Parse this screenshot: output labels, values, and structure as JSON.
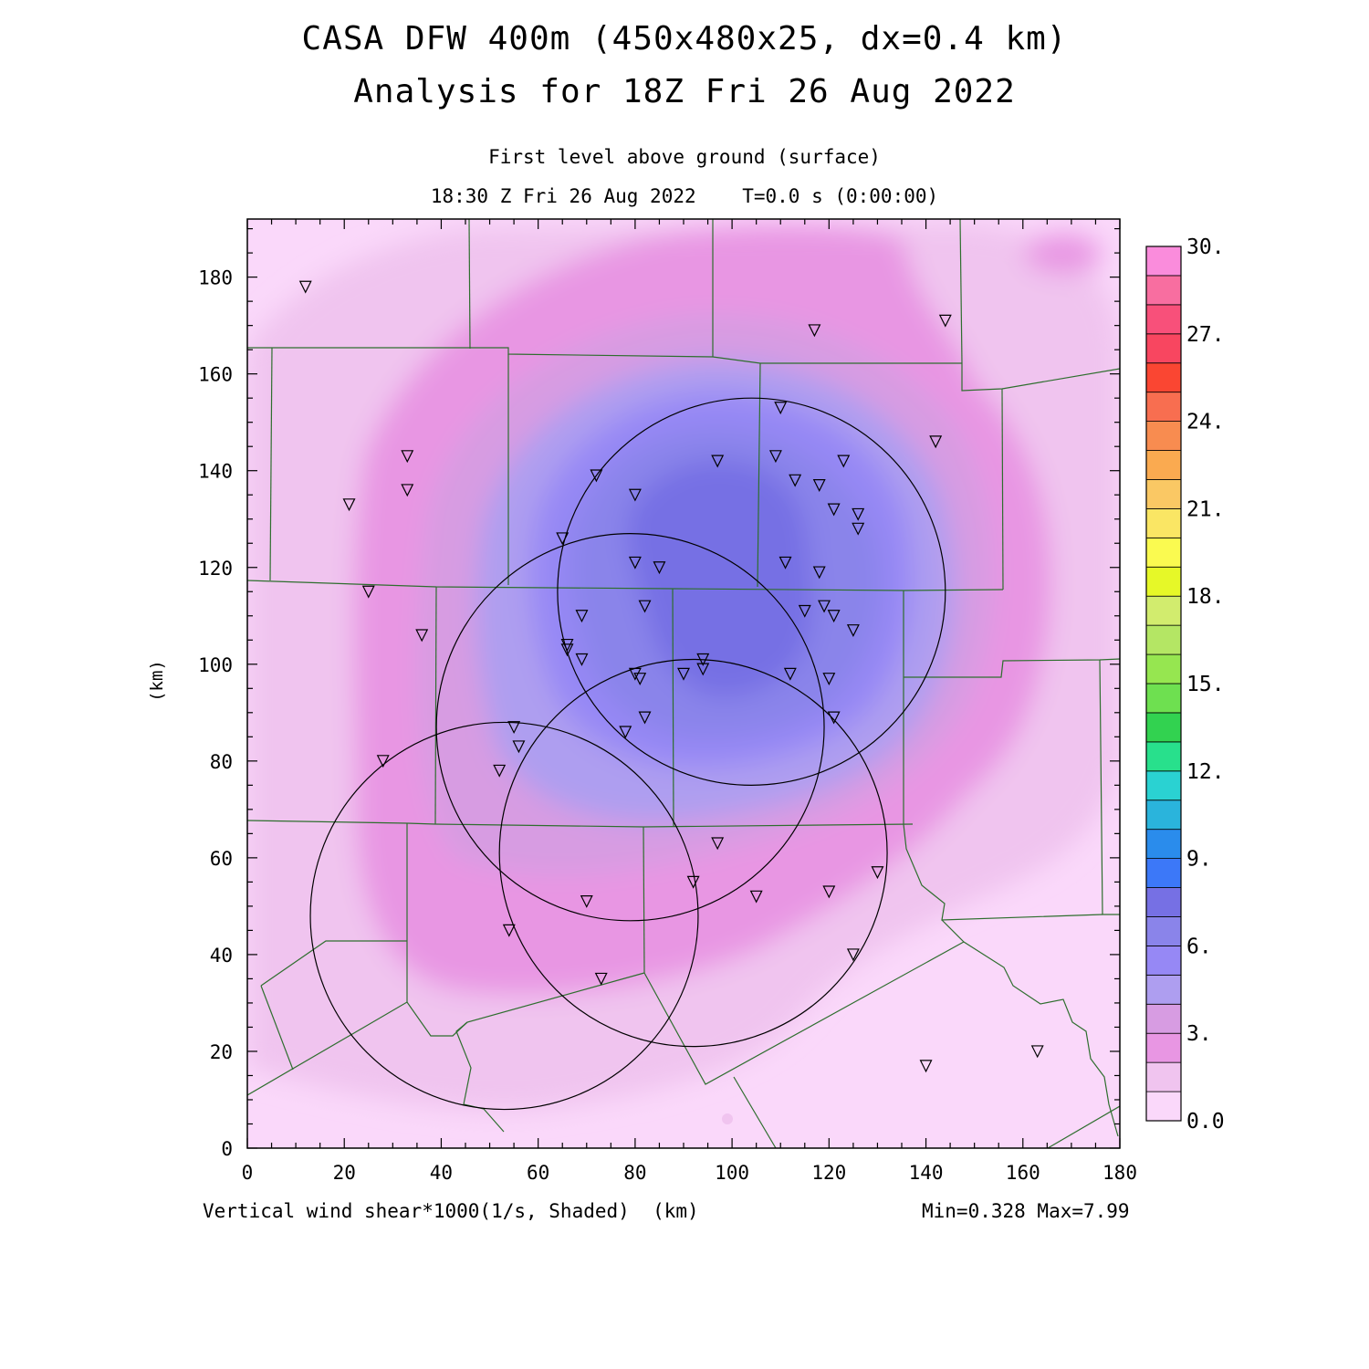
{
  "title": {
    "line1": "CASA DFW 400m (450x480x25, dx=0.4 km)",
    "line2": "Analysis for 18Z Fri 26 Aug 2022"
  },
  "subtitle": {
    "level": "First level above ground (surface)",
    "time": "18:30 Z Fri 26 Aug 2022    T=0.0 s (0:00:00)"
  },
  "axes": {
    "x_unit": "(km)",
    "y_label": "(km)",
    "x_ticks": [
      "0",
      "20",
      "40",
      "60",
      "80",
      "100",
      "120",
      "140",
      "160",
      "180"
    ],
    "y_ticks": [
      "0",
      "20",
      "40",
      "60",
      "80",
      "100",
      "120",
      "140",
      "160",
      "180"
    ],
    "xlim": [
      0,
      180
    ],
    "ylim": [
      0,
      192
    ]
  },
  "footer": {
    "field_label": "Vertical wind shear*1000(1/s, Shaded)",
    "unit": "(km)",
    "minmax": "Min=0.328 Max=7.99"
  },
  "colorbar": {
    "labels": [
      "0.0",
      "3.",
      "6.",
      "9.",
      "12.",
      "15.",
      "18.",
      "21.",
      "24.",
      "27.",
      "30."
    ],
    "colors": [
      "#fad8fa",
      "#f0c4ef",
      "#e896e3",
      "#d79ce2",
      "#ae9ef0",
      "#9688f5",
      "#8a84ea",
      "#7670e4",
      "#3c78f8",
      "#2a8cec",
      "#2ab4dc",
      "#2ad2d2",
      "#28e08c",
      "#32d250",
      "#6ee050",
      "#96e650",
      "#b4e664",
      "#d2ec6e",
      "#e6f828",
      "#fafa50",
      "#fae664",
      "#fac864",
      "#faaa50",
      "#f88c50",
      "#f86e50",
      "#fa4632",
      "#f84660",
      "#f8507a",
      "#f86ea0",
      "#fa8cdc"
    ]
  },
  "shading": {
    "levels": [
      {
        "value": 0.5,
        "color": "#f0c4ef"
      },
      {
        "value": 2.0,
        "color": "#e896e3"
      },
      {
        "value": 3.0,
        "color": "#d79ce2"
      },
      {
        "value": 4.0,
        "color": "#ae9ef0"
      },
      {
        "value": 5.0,
        "color": "#9688f5"
      },
      {
        "value": 6.0,
        "color": "#8a84ea"
      },
      {
        "value": 7.0,
        "color": "#7670e4"
      }
    ]
  },
  "radar_rings": [
    {
      "cx": 104,
      "cy": 115,
      "r": 40
    },
    {
      "cx": 79,
      "cy": 87,
      "r": 40
    },
    {
      "cx": 92,
      "cy": 61,
      "r": 40
    },
    {
      "cx": 53,
      "cy": 48,
      "r": 40
    }
  ],
  "stations": [
    [
      12,
      178
    ],
    [
      33,
      143
    ],
    [
      33,
      136
    ],
    [
      21,
      133
    ],
    [
      25,
      115
    ],
    [
      36,
      106
    ],
    [
      28,
      80
    ],
    [
      52,
      78
    ],
    [
      55,
      87
    ],
    [
      56,
      83
    ],
    [
      65,
      126
    ],
    [
      72,
      139
    ],
    [
      80,
      135
    ],
    [
      80,
      121
    ],
    [
      85,
      120
    ],
    [
      82,
      112
    ],
    [
      69,
      110
    ],
    [
      66,
      104
    ],
    [
      66,
      103
    ],
    [
      69,
      101
    ],
    [
      80,
      98
    ],
    [
      81,
      97
    ],
    [
      82,
      89
    ],
    [
      78,
      86
    ],
    [
      90,
      98
    ],
    [
      94,
      101
    ],
    [
      94,
      99
    ],
    [
      97,
      142
    ],
    [
      110,
      153
    ],
    [
      109,
      143
    ],
    [
      113,
      138
    ],
    [
      118,
      137
    ],
    [
      123,
      142
    ],
    [
      121,
      132
    ],
    [
      126,
      131
    ],
    [
      126,
      128
    ],
    [
      111,
      121
    ],
    [
      118,
      119
    ],
    [
      115,
      111
    ],
    [
      119,
      112
    ],
    [
      121,
      110
    ],
    [
      125,
      107
    ],
    [
      112,
      98
    ],
    [
      120,
      97
    ],
    [
      121,
      89
    ],
    [
      97,
      63
    ],
    [
      92,
      55
    ],
    [
      105,
      52
    ],
    [
      120,
      53
    ],
    [
      130,
      57
    ],
    [
      125,
      40
    ],
    [
      70,
      51
    ],
    [
      54,
      45
    ],
    [
      73,
      35
    ],
    [
      117,
      169
    ],
    [
      144,
      171
    ],
    [
      142,
      146
    ],
    [
      140,
      17
    ],
    [
      163,
      20
    ]
  ]
}
